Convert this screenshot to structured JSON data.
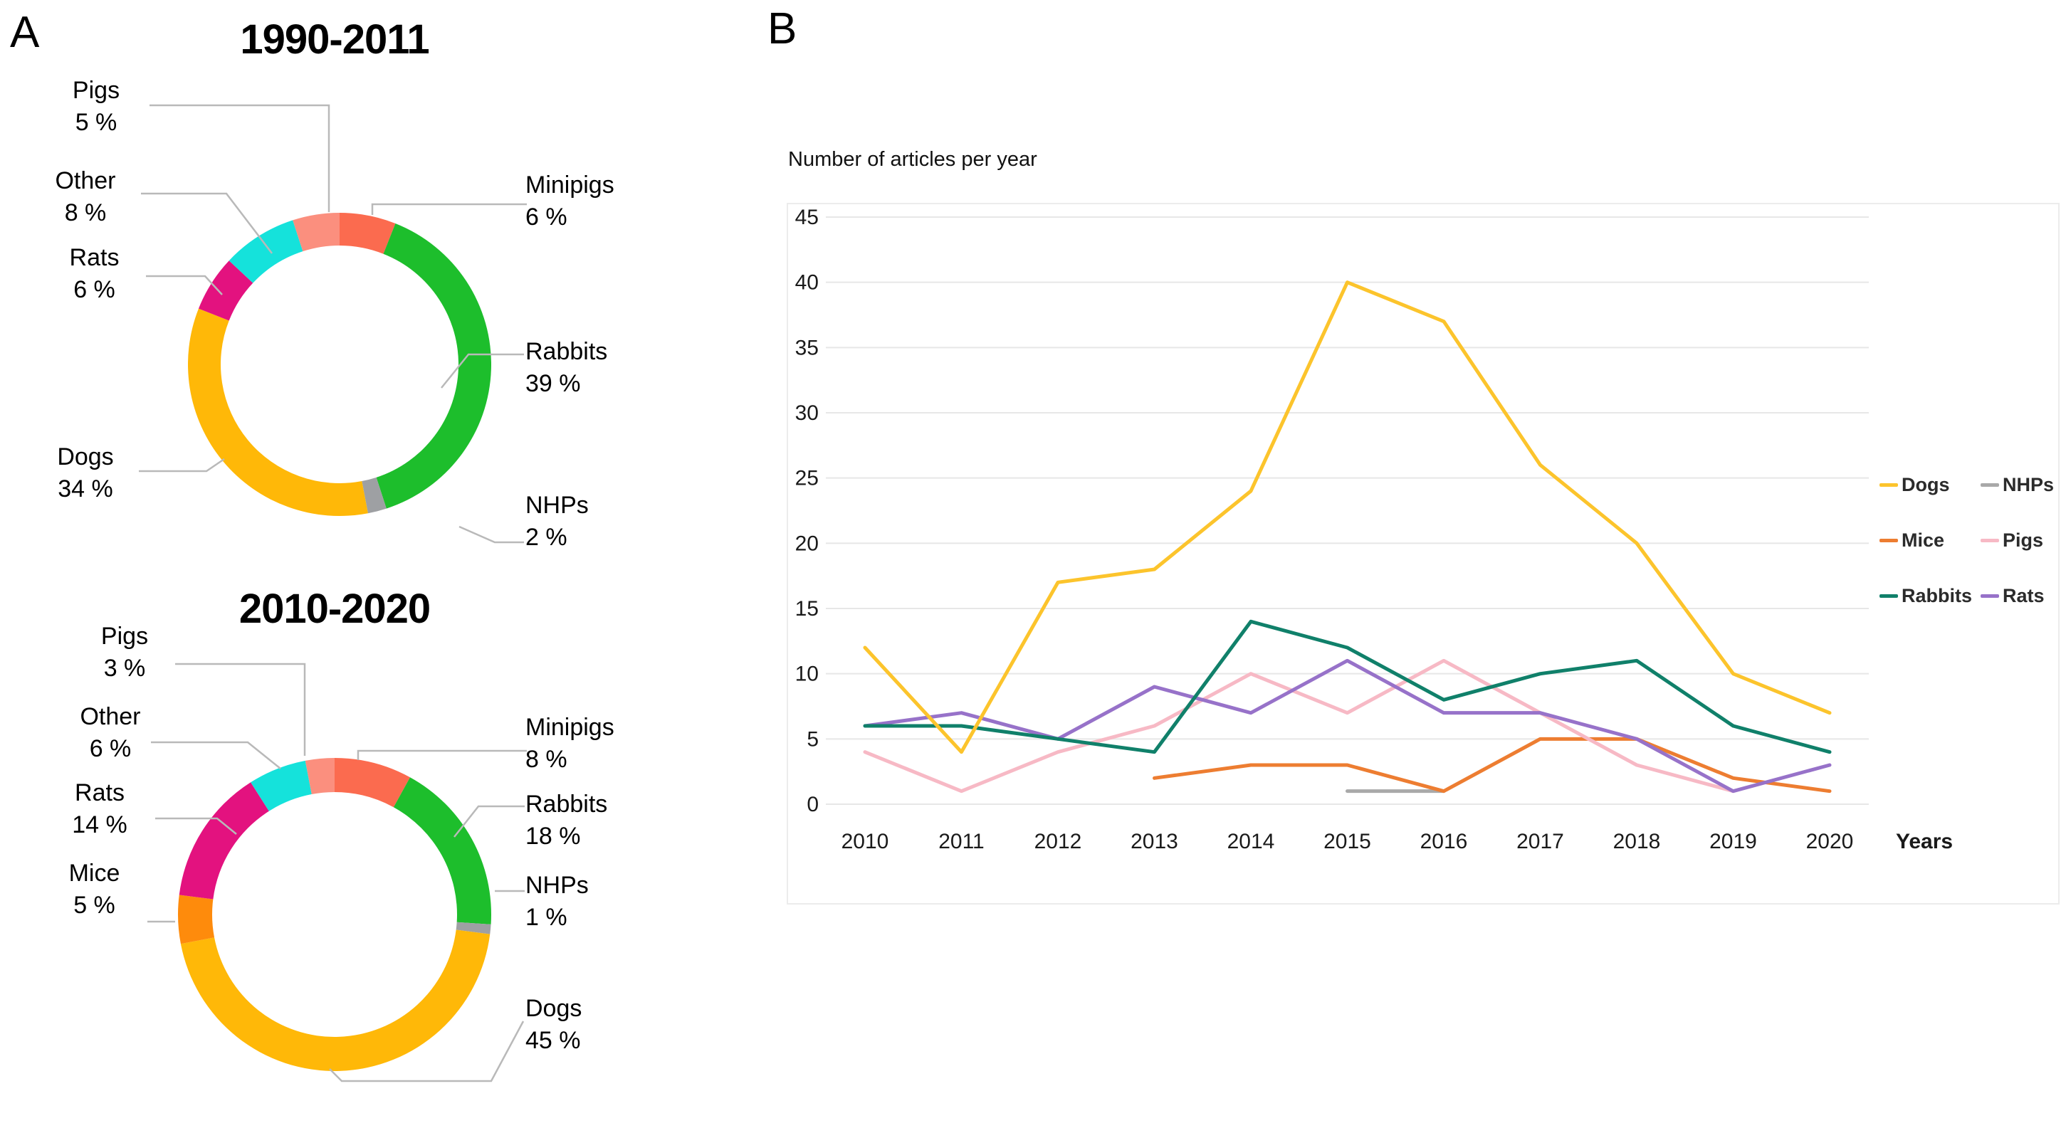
{
  "panel_a": {
    "label": "A",
    "donuts": [
      {
        "title": "1990-2011",
        "segments": [
          {
            "label": "Minipigs",
            "pct": 6,
            "pct_text": "6 %",
            "color": "#fb6b4f"
          },
          {
            "label": "Rabbits",
            "pct": 39,
            "pct_text": "39 %",
            "color": "#1dbe2c"
          },
          {
            "label": "NHPs",
            "pct": 2,
            "pct_text": "2 %",
            "color": "#9ea0a3"
          },
          {
            "label": "Dogs",
            "pct": 34,
            "pct_text": "34 %",
            "color": "#ffb808"
          },
          {
            "label": "Rats",
            "pct": 6,
            "pct_text": "6 %",
            "color": "#e3127f"
          },
          {
            "label": "Other",
            "pct": 8,
            "pct_text": "8 %",
            "color": "#15e2db"
          },
          {
            "label": "Pigs",
            "pct": 5,
            "pct_text": "5 %",
            "color": "#fb8f7e"
          }
        ]
      },
      {
        "title": "2010-2020",
        "segments": [
          {
            "label": "Minipigs",
            "pct": 8,
            "pct_text": "8 %",
            "color": "#fb6b4f"
          },
          {
            "label": "Rabbits",
            "pct": 18,
            "pct_text": "18 %",
            "color": "#1dbe2c"
          },
          {
            "label": "NHPs",
            "pct": 1,
            "pct_text": "1 %",
            "color": "#9ea0a3"
          },
          {
            "label": "Dogs",
            "pct": 45,
            "pct_text": "45 %",
            "color": "#ffb808"
          },
          {
            "label": "Mice",
            "pct": 5,
            "pct_text": "5 %",
            "color": "#fe8b0c"
          },
          {
            "label": "Rats",
            "pct": 14,
            "pct_text": "14 %",
            "color": "#e3127f"
          },
          {
            "label": "Other",
            "pct": 6,
            "pct_text": "6 %",
            "color": "#15e2db"
          },
          {
            "label": "Pigs",
            "pct": 3,
            "pct_text": "3 %",
            "color": "#fb8f7e"
          }
        ]
      }
    ]
  },
  "panel_b": {
    "label": "B",
    "legend": [
      "Dogs",
      "NHPs",
      "Mice",
      "Pigs",
      "Rabbits",
      "Rats"
    ]
  },
  "chart_data": {
    "type": "line",
    "title": "Number of articles per year",
    "xlabel": "Years",
    "ylabel": "",
    "x": [
      2010,
      2011,
      2012,
      2013,
      2014,
      2015,
      2016,
      2017,
      2018,
      2019,
      2020
    ],
    "ylim": [
      0,
      45
    ],
    "yticks": [
      0,
      5,
      10,
      15,
      20,
      25,
      30,
      35,
      40,
      45
    ],
    "grid": true,
    "legend_position": "right",
    "series": [
      {
        "name": "Dogs",
        "color": "#fcc42c",
        "values": [
          12,
          4,
          17,
          18,
          24,
          40,
          37,
          26,
          20,
          10,
          7
        ]
      },
      {
        "name": "NHPs",
        "color": "#a9a9a9",
        "values": [
          null,
          null,
          null,
          null,
          null,
          1,
          1,
          null,
          null,
          null,
          null
        ]
      },
      {
        "name": "Mice",
        "color": "#ed7d31",
        "values": [
          null,
          null,
          null,
          2,
          3,
          3,
          1,
          5,
          5,
          2,
          1
        ]
      },
      {
        "name": "Pigs",
        "color": "#f7b9c5",
        "values": [
          4,
          1,
          4,
          6,
          10,
          7,
          11,
          7,
          3,
          1,
          null
        ]
      },
      {
        "name": "Rabbits",
        "color": "#10806a",
        "values": [
          6,
          6,
          5,
          4,
          14,
          12,
          8,
          10,
          11,
          6,
          4
        ]
      },
      {
        "name": "Rats",
        "color": "#9772c9",
        "values": [
          6,
          7,
          5,
          9,
          7,
          11,
          7,
          7,
          5,
          1,
          3
        ]
      }
    ]
  }
}
